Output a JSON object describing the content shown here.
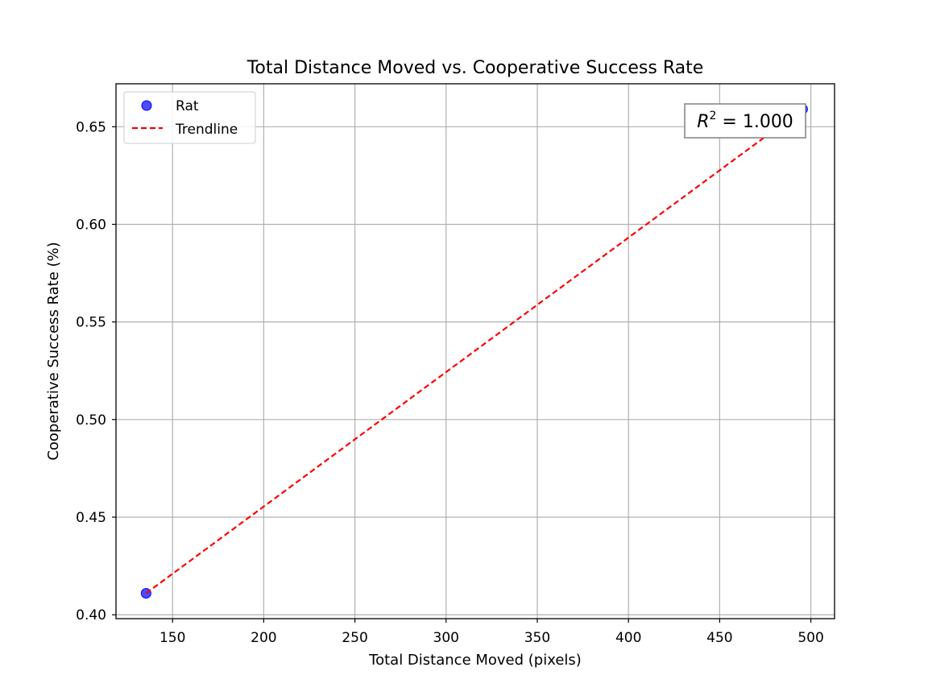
{
  "chart_data": {
    "type": "scatter",
    "title": "Total Distance Moved vs. Cooperative Success Rate",
    "xlabel": "Total Distance Moved (pixels)",
    "ylabel": "Cooperative Success Rate (%)",
    "xlim": [
      119,
      513
    ],
    "ylim": [
      0.398,
      0.672
    ],
    "xticks": [
      150,
      200,
      250,
      300,
      350,
      400,
      450,
      500
    ],
    "yticks": [
      0.4,
      0.45,
      0.5,
      0.55,
      0.6,
      0.65
    ],
    "xtick_labels": [
      "150",
      "200",
      "250",
      "300",
      "350",
      "400",
      "450",
      "500"
    ],
    "ytick_labels": [
      "0.40",
      "0.45",
      "0.50",
      "0.55",
      "0.60",
      "0.65"
    ],
    "grid": true,
    "legend_position": "top-left",
    "series": [
      {
        "name": "Rat",
        "kind": "scatter",
        "color": "#0000ff",
        "points": [
          {
            "x": 135.5,
            "y": 0.411
          },
          {
            "x": 495.5,
            "y": 0.659
          }
        ]
      },
      {
        "name": "Trendline",
        "kind": "line",
        "style": "dashed",
        "color": "#ff0000",
        "points": [
          {
            "x": 135.5,
            "y": 0.411
          },
          {
            "x": 495.5,
            "y": 0.659
          }
        ]
      }
    ],
    "annotation": {
      "label": "R",
      "superscript": "2",
      "value": " = 1.000"
    }
  }
}
